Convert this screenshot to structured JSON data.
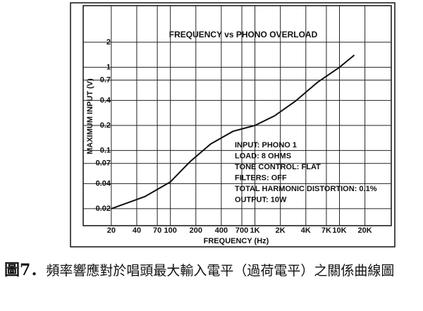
{
  "chart_data": {
    "type": "line",
    "title": "FREQUENCY vs PHONO OVERLOAD",
    "x_label": "FREQUENCY (Hz)",
    "y_label": "MAXIMUM INPUT (V)",
    "x": [
      20,
      50,
      100,
      170,
      300,
      550,
      1000,
      1700,
      3000,
      5500,
      10000,
      15000
    ],
    "values": [
      0.02,
      0.028,
      0.042,
      0.073,
      0.12,
      0.17,
      0.2,
      0.26,
      0.39,
      0.66,
      1.0,
      1.4
    ],
    "color": "#111111",
    "x_log": true,
    "y_log": true,
    "grid": true,
    "xlim": [
      9.3,
      41000
    ],
    "ylim": [
      0.0125,
      5.5
    ],
    "xticks": [
      20,
      40,
      70,
      100,
      200,
      400,
      700,
      {
        "value": 1000,
        "label": "1K"
      },
      {
        "value": 2000,
        "label": "2K"
      },
      {
        "value": 4000,
        "label": "4K"
      },
      {
        "value": 7000,
        "label": "7K"
      },
      {
        "value": 10000,
        "label": "10K"
      },
      {
        "value": 20000,
        "label": "20K"
      }
    ],
    "yticks": [
      0.02,
      0.04,
      0.07,
      0.1,
      0.2,
      0.4,
      0.7,
      1,
      2
    ],
    "annotations": [
      "INPUT: PHONO 1",
      "LOAD: 8 OHMS",
      "TONE CONTROL: FLAT",
      "FILTERS: OFF",
      "TOTAL HARMONIC DISTORTION: 0.1%",
      "OUTPUT: 10W"
    ]
  },
  "figure_label": "圖7．",
  "caption": "頻率響應對於唱頭最大輸入電平（過荷電平）之關係曲線圖"
}
